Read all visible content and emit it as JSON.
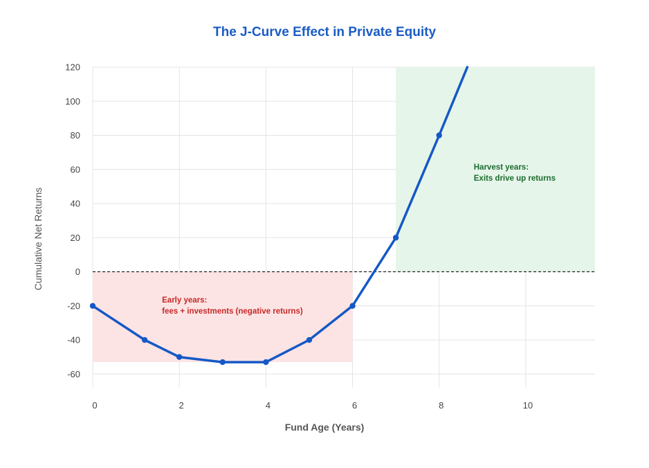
{
  "chart_data": {
    "type": "line",
    "title": "The J-Curve Effect in Private Equity",
    "xlabel": "Fund Age (Years)",
    "ylabel": "Cumulative Net Returns",
    "xlim": [
      0,
      11.6
    ],
    "ylim": [
      -68,
      120
    ],
    "x_ticks": [
      0,
      2,
      4,
      6,
      8,
      10
    ],
    "y_ticks": [
      120,
      100,
      80,
      60,
      40,
      20,
      0,
      -20,
      -40,
      -60
    ],
    "grid": true,
    "legend": "none",
    "series": [
      {
        "color": "#1558c6",
        "points": [
          {
            "x": 0,
            "y": -20
          },
          {
            "x": 1.2,
            "y": -40
          },
          {
            "x": 2,
            "y": -50
          },
          {
            "x": 3,
            "y": -53
          },
          {
            "x": 4,
            "y": -53
          },
          {
            "x": 5,
            "y": -40
          },
          {
            "x": 6,
            "y": -20
          },
          {
            "x": 7,
            "y": 20
          },
          {
            "x": 8,
            "y": 80
          },
          {
            "x": 8.65,
            "y": 120
          }
        ],
        "markers_x": [
          0,
          1.2,
          2,
          3,
          4,
          5,
          6,
          7,
          8
        ]
      }
    ],
    "reference_line": {
      "y": 0,
      "style": "dashed",
      "color": "#222222"
    },
    "regions": [
      {
        "name": "early",
        "x": [
          0,
          6
        ],
        "y": [
          -53,
          0
        ],
        "color": "#fde4e4"
      },
      {
        "name": "harvest",
        "x": [
          7,
          11.6
        ],
        "y": [
          0,
          120
        ],
        "color": "#e6f5ea"
      }
    ],
    "annotations": [
      {
        "lines": [
          "Early years:",
          "fees + investments (negative returns)"
        ],
        "x": 1.6,
        "y": -18,
        "color": "#c62828"
      },
      {
        "lines": [
          "Harvest years:",
          "Exits drive up returns"
        ],
        "x": 8.8,
        "y": 60,
        "color": "#1b6b2e"
      }
    ]
  }
}
